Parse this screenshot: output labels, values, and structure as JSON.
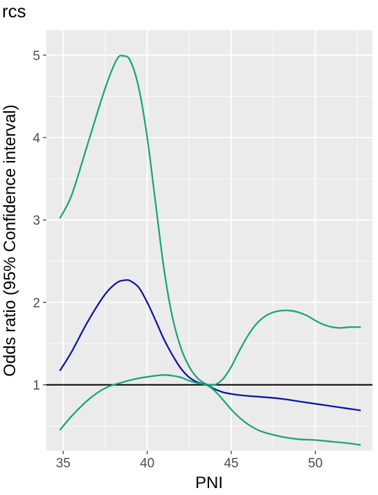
{
  "chart_data": {
    "type": "line",
    "title": "rcs",
    "xlabel": "PNI",
    "ylabel": "Odds ratio (95% Confidence interval)",
    "xlim": [
      34.0,
      53.4
    ],
    "ylim": [
      0.2,
      5.3
    ],
    "xticks": [
      35,
      40,
      45,
      50
    ],
    "yticks": [
      1,
      2,
      3,
      4,
      5
    ],
    "grid": true,
    "legend": "none",
    "reference_line": {
      "y": 1,
      "color": "#000000"
    },
    "background": "#ebebeb",
    "series": [
      {
        "role": "upper",
        "color": "#1aa675",
        "x": [
          34.8,
          35.5,
          36.5,
          37.5,
          38.2,
          38.6,
          39.0,
          39.5,
          40.0,
          40.5,
          41.0,
          41.5,
          42.0,
          42.5,
          43.0,
          43.5,
          44.0,
          44.5,
          45.0,
          45.5,
          46.0,
          46.5,
          47.0,
          47.5,
          48.0,
          48.5,
          49.0,
          49.5,
          50.0,
          50.5,
          51.0,
          51.5,
          52.0,
          52.7
        ],
        "y": [
          3.02,
          3.3,
          3.95,
          4.6,
          4.95,
          4.99,
          4.93,
          4.6,
          4.0,
          3.2,
          2.4,
          1.82,
          1.45,
          1.22,
          1.08,
          1.01,
          1.0,
          1.07,
          1.22,
          1.42,
          1.6,
          1.74,
          1.83,
          1.88,
          1.9,
          1.9,
          1.88,
          1.84,
          1.78,
          1.73,
          1.7,
          1.69,
          1.7,
          1.7
        ]
      },
      {
        "role": "estimate",
        "color": "#0f14a6",
        "x": [
          34.8,
          35.5,
          36.5,
          37.5,
          38.2,
          38.7,
          39.0,
          39.5,
          40.0,
          40.5,
          41.0,
          41.5,
          42.0,
          42.5,
          43.0,
          43.5,
          44.0,
          44.5,
          45.0,
          45.5,
          46.0,
          47.0,
          48.0,
          49.0,
          50.0,
          51.0,
          52.0,
          52.7
        ],
        "y": [
          1.17,
          1.4,
          1.78,
          2.1,
          2.24,
          2.27,
          2.26,
          2.18,
          2.0,
          1.78,
          1.55,
          1.36,
          1.2,
          1.09,
          1.03,
          1.0,
          0.95,
          0.91,
          0.89,
          0.875,
          0.865,
          0.85,
          0.83,
          0.8,
          0.77,
          0.74,
          0.71,
          0.69
        ]
      },
      {
        "role": "lower",
        "color": "#1aa675",
        "x": [
          34.8,
          35.5,
          36.5,
          37.5,
          38.5,
          39.5,
          40.5,
          41.0,
          41.5,
          42.0,
          42.5,
          43.0,
          43.5,
          44.0,
          44.5,
          45.0,
          45.5,
          46.0,
          46.5,
          47.0,
          48.0,
          49.0,
          50.0,
          51.0,
          52.0,
          52.7
        ],
        "y": [
          0.45,
          0.62,
          0.82,
          0.96,
          1.03,
          1.08,
          1.11,
          1.12,
          1.11,
          1.09,
          1.05,
          1.02,
          1.0,
          0.93,
          0.82,
          0.7,
          0.6,
          0.52,
          0.46,
          0.42,
          0.37,
          0.34,
          0.33,
          0.31,
          0.29,
          0.27
        ]
      }
    ]
  }
}
